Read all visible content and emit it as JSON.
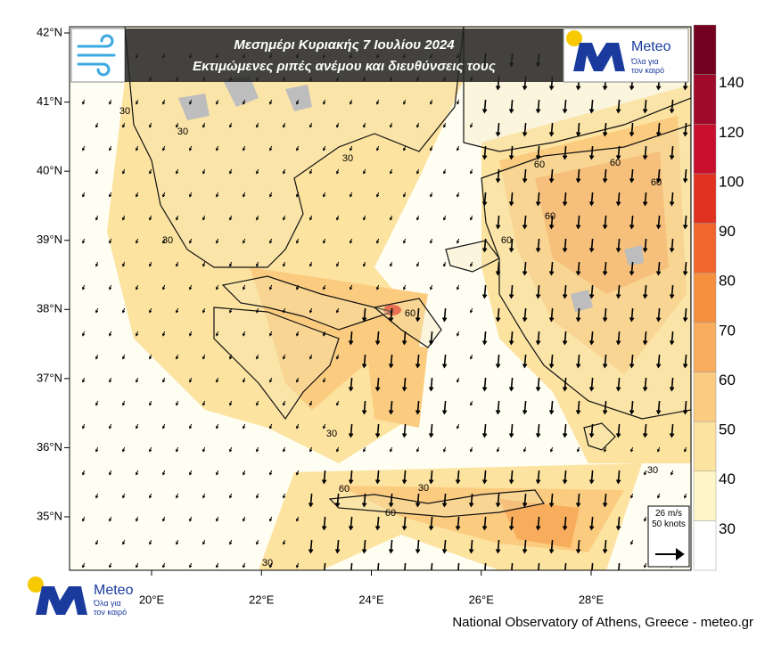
{
  "header": {
    "title_line1": "Μεσημέρι Κυριακής 7 Ιουλίου 2024",
    "title_line2": "Εκτιμώμενες ριπές ανέμου και διευθύνσεις τους"
  },
  "logo": {
    "name": "Meteo",
    "tagline1": "Όλα για",
    "tagline2": "τον καιρό"
  },
  "map": {
    "lat_ticks": [
      {
        "value": 42,
        "label": "42°N"
      },
      {
        "value": 41,
        "label": "41°N"
      },
      {
        "value": 40,
        "label": "40°N"
      },
      {
        "value": 39,
        "label": "39°N"
      },
      {
        "value": 38,
        "label": "38°N"
      },
      {
        "value": 37,
        "label": "37°N"
      },
      {
        "value": 36,
        "label": "36°N"
      },
      {
        "value": 35,
        "label": "35°N"
      }
    ],
    "lon_ticks": [
      {
        "value": 20,
        "label": "20°E"
      },
      {
        "value": 22,
        "label": "22°E"
      },
      {
        "value": 24,
        "label": "24°E"
      },
      {
        "value": 26,
        "label": "26°E"
      },
      {
        "value": 28,
        "label": "28°E"
      }
    ],
    "contour_labels": [
      30,
      30,
      30,
      30,
      30,
      30,
      30,
      30,
      60,
      60,
      60,
      60,
      60,
      60,
      60,
      60
    ]
  },
  "colorbar": {
    "levels": [
      30,
      40,
      50,
      60,
      70,
      80,
      90,
      100,
      120,
      140
    ],
    "colors": [
      "#ffffff",
      "#fff6c8",
      "#fde3a0",
      "#fbcc80",
      "#f8ad5c",
      "#f59040",
      "#f0672c",
      "#e0321e",
      "#c8102e",
      "#a00a2a",
      "#72001e"
    ]
  },
  "vector_legend": {
    "speed": "26 m/s",
    "knots": "50 knots"
  },
  "footer": "National Observatory of Athens, Greece - meteo.gr"
}
